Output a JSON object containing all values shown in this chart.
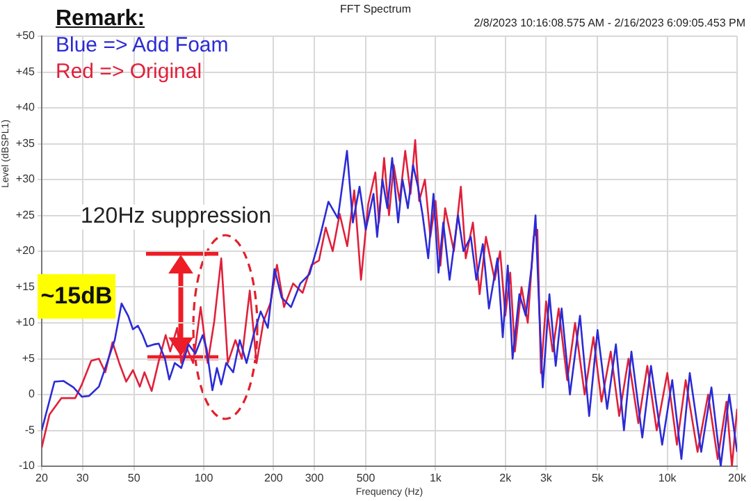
{
  "chart_data": {
    "type": "line",
    "title": "FFT Spectrum",
    "subtitle": "2/8/2023 10:16:08.575 AM - 2/16/2023 6:09:05.453 PM",
    "xlabel": "Frequency (Hz)",
    "ylabel": "Level (dBSPL1)",
    "legend_title": "Remark:",
    "legend": "top left",
    "log": "x",
    "grid": true,
    "marker": "none",
    "line_style": "solid",
    "xlim": [
      20,
      20000
    ],
    "xticks": [
      20,
      30,
      50,
      100,
      200,
      300,
      500,
      {
        "value": 1000,
        "label": "1k"
      },
      {
        "value": 2000,
        "label": "2k"
      },
      {
        "value": 3000,
        "label": "3k"
      },
      {
        "value": 5000,
        "label": "5k"
      },
      {
        "value": 10000,
        "label": "10k"
      },
      {
        "value": 20000,
        "label": "20k"
      }
    ],
    "ylim": [
      -10,
      50
    ],
    "yticks": [
      -10,
      -5,
      0,
      {
        "value": 5,
        "label": "+5"
      },
      {
        "value": 10,
        "label": "+10"
      },
      {
        "value": 15,
        "label": "+15"
      },
      {
        "value": 20,
        "label": "+20"
      },
      {
        "value": 25,
        "label": "+25"
      },
      {
        "value": 30,
        "label": "+30"
      },
      {
        "value": 35,
        "label": "+35"
      },
      {
        "value": 40,
        "label": "+40"
      },
      {
        "value": 45,
        "label": "+45"
      },
      {
        "value": 50,
        "label": "+50"
      }
    ],
    "annotations": [
      "120Hz suppression",
      "~15dB"
    ],
    "series": [
      {
        "name": "Blue => Add Foam",
        "color": "#2b2bd6",
        "x": [
          20,
          22.7,
          24.8,
          27.4,
          29.8,
          32,
          35.3,
          37.6,
          41.3,
          44.2,
          47.3,
          49.5,
          52,
          54.5,
          57,
          61,
          64,
          68,
          71,
          75,
          80,
          86,
          92,
          99,
          103,
          109,
          114,
          119,
          125,
          134,
          143,
          153,
          164,
          176,
          189,
          202,
          217,
          238,
          261,
          286,
          314,
          345,
          379,
          415,
          440,
          470,
          500,
          540,
          560,
          590,
          620,
          650,
          690,
          720,
          760,
          800,
          840,
          880,
          930,
          980,
          1030,
          1080,
          1150,
          1250,
          1320,
          1420,
          1500,
          1600,
          1700,
          1850,
          1950,
          2050,
          2150,
          2300,
          2450,
          2600,
          2700,
          2800,
          2900,
          3100,
          3300,
          3500,
          3800,
          4200,
          4600,
          5000,
          5500,
          6000,
          6500,
          7000,
          7800,
          8500,
          9500,
          10500,
          11500,
          12500,
          14000,
          15500,
          17000,
          18500,
          20000
        ],
        "values": [
          -5,
          1.8,
          1.9,
          1,
          -0.3,
          -0.2,
          1.1,
          3.7,
          7.6,
          12.7,
          10.9,
          9.1,
          9.6,
          8.3,
          6.7,
          7,
          7.1,
          5,
          2.1,
          4.4,
          3.7,
          7,
          5.7,
          8.3,
          6.3,
          0.6,
          3.7,
          1.4,
          4.4,
          3.1,
          7.6,
          4.4,
          8.3,
          11.6,
          9.3,
          17.5,
          13.5,
          12.2,
          15.5,
          16.8,
          21.4,
          26.9,
          24.6,
          34,
          24,
          29,
          23,
          28,
          22,
          30,
          26,
          33,
          24,
          30,
          26,
          32,
          29,
          25,
          19,
          28,
          17,
          24,
          16,
          25,
          20,
          22,
          16,
          21,
          12,
          19,
          8,
          18,
          5,
          14,
          11,
          18,
          25,
          12,
          1,
          14,
          4,
          12,
          0,
          11,
          -3,
          9,
          -2,
          7,
          -5,
          6,
          -6,
          4,
          -7,
          2,
          -9,
          3,
          -8,
          1,
          -10,
          0,
          -8
        ]
      },
      {
        "name": "Red => Original",
        "color": "#e0203a",
        "x": [
          20,
          21.6,
          24.3,
          27.9,
          29.8,
          32.7,
          35.3,
          37.6,
          40.4,
          43.2,
          46.3,
          49.5,
          53,
          55.5,
          59.6,
          64,
          68.5,
          71.7,
          76.8,
          80,
          84,
          90,
          97,
          104,
          111,
          119,
          127,
          137,
          146,
          158,
          169,
          181,
          194,
          207,
          222,
          243,
          267,
          292,
          314,
          336,
          360,
          386,
          416,
          446,
          477,
          512,
          550,
          570,
          600,
          630,
          660,
          700,
          740,
          780,
          817,
          850,
          900,
          950,
          1000,
          1050,
          1100,
          1200,
          1286,
          1350,
          1450,
          1550,
          1650,
          1800,
          1900,
          2000,
          2100,
          2200,
          2350,
          2500,
          2650,
          2750,
          2850,
          3000,
          3200,
          3400,
          3700,
          4000,
          4400,
          4800,
          5200,
          5700,
          6200,
          6800,
          7500,
          8200,
          9000,
          10000,
          11000,
          12000,
          13500,
          15000,
          16500,
          18000,
          19000,
          20000
        ],
        "values": [
          -7.4,
          -2.8,
          -0.5,
          -0.5,
          1.4,
          4.7,
          5,
          3.1,
          7.3,
          4.4,
          1.8,
          3.4,
          1.1,
          3.1,
          0.5,
          4.7,
          8.3,
          6,
          9.3,
          4.4,
          6.7,
          4.4,
          12.2,
          4.4,
          10.2,
          19,
          4.4,
          7.6,
          5,
          14.5,
          4.4,
          10.2,
          12.8,
          18.1,
          12.2,
          15.5,
          14.2,
          18.1,
          18.7,
          23.3,
          20,
          25.2,
          20.7,
          28.5,
          16,
          26.5,
          31,
          24,
          33,
          25,
          32,
          27,
          34,
          28,
          35.5,
          27,
          30,
          22,
          27,
          18,
          26,
          20,
          29,
          19,
          24,
          14,
          22,
          16,
          20,
          11,
          17,
          6,
          15,
          10,
          22,
          23,
          3,
          13,
          6,
          12,
          2,
          10,
          0,
          8,
          -1,
          6,
          -3,
          5,
          -4,
          4,
          -5,
          3,
          -7,
          2,
          -8,
          0,
          -9,
          -1,
          -10,
          -2
        ]
      }
    ]
  }
}
